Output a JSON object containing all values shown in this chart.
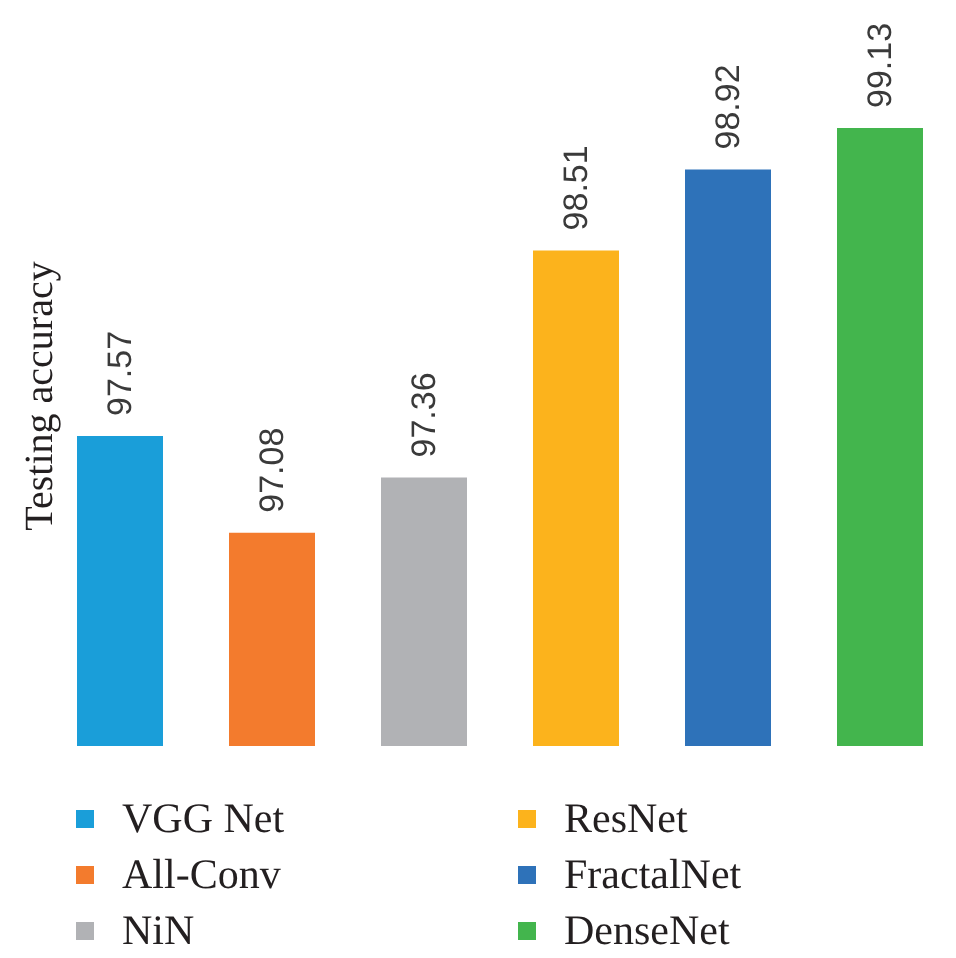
{
  "chart_data": {
    "type": "bar",
    "ylabel": "Testing accuracy",
    "categories": [
      null,
      null,
      null,
      null,
      null,
      null
    ],
    "series": [
      {
        "name": "VGG Net",
        "color": "#1a9ed9",
        "values": [
          97.57,
          null,
          null,
          null,
          null,
          null
        ]
      },
      {
        "name": "All-Conv",
        "color": "#f37b2d",
        "values": [
          null,
          97.08,
          null,
          null,
          null,
          null
        ]
      },
      {
        "name": "NiN",
        "color": "#b1b2b5",
        "values": [
          null,
          null,
          97.36,
          null,
          null,
          null
        ]
      },
      {
        "name": "ResNet",
        "color": "#fcb31c",
        "values": [
          null,
          null,
          null,
          98.51,
          null,
          null
        ]
      },
      {
        "name": "FractalNet",
        "color": "#2e72b9",
        "values": [
          null,
          null,
          null,
          null,
          98.92,
          null
        ]
      },
      {
        "name": "DenseNet",
        "color": "#43b54d",
        "values": [
          null,
          null,
          null,
          null,
          null,
          99.13
        ]
      }
    ],
    "stacked": true,
    "ylim": [
      96,
      99.13
    ],
    "data_labels": true,
    "legend": "bottom",
    "tick_labels": false
  }
}
